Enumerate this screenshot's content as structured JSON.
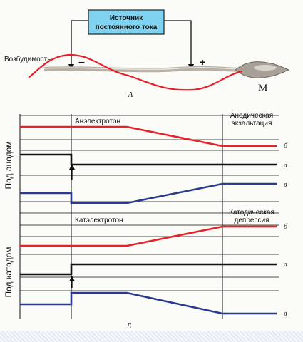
{
  "part_a": {
    "source_label_line1": "Источник",
    "source_label_line2": "постоянного тока",
    "excitability_label": "Возбудимость",
    "minus": "–",
    "plus": "+",
    "muscle_label": "М",
    "panel_label": "А"
  },
  "part_b": {
    "panel_label": "Б",
    "anode": {
      "side_label": "Под анодом",
      "phase1_label": "Анэлектротон",
      "phase2_label_line1": "Анодическая",
      "phase2_label_line2": "экзальтация"
    },
    "cathode": {
      "side_label": "Под катодом",
      "phase1_label": "Катэлектротон",
      "phase2_label_line1": "Катодическая",
      "phase2_label_line2": "депрессия"
    },
    "curve_labels": {
      "b": "б",
      "a": "а",
      "v": "в"
    }
  },
  "colors": {
    "red_curve": "#e8202a",
    "blue_curve": "#2b3a8c",
    "black_curve": "#111111",
    "source_box": "#7fd3f0"
  }
}
